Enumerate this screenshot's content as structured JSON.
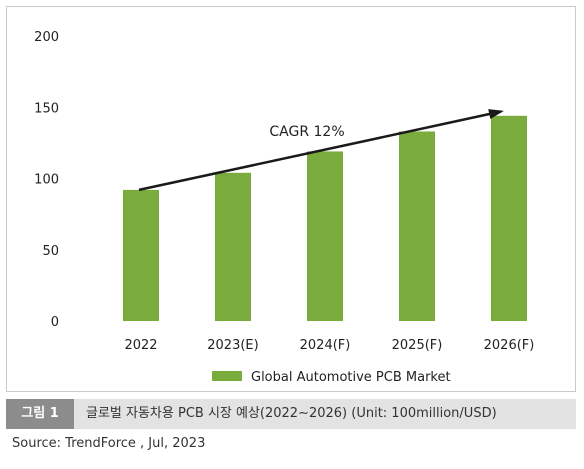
{
  "figure": {
    "tag": "그림 1",
    "caption": "글로벌 자동차용 PCB 시장 예상(2022∼2026) (Unit: 100million/USD)",
    "source": "Source: TrendForce , Jul, 2023"
  },
  "colors": {
    "bar": "#7aab3d",
    "arrow": "#1a1a1a",
    "axis_text": "#222222"
  },
  "chart_data": {
    "type": "bar",
    "categories": [
      "2022",
      "2023(E)",
      "2024(F)",
      "2025(F)",
      "2026(F)"
    ],
    "series": [
      {
        "name": "Global Automotive PCB Market",
        "values": [
          92,
          104,
          119,
          133,
          144
        ]
      }
    ],
    "ylim": [
      0,
      200
    ],
    "yticks": [
      0,
      50,
      100,
      150,
      200
    ],
    "grid": false,
    "legend_position": "bottom",
    "annotation": {
      "text": "CAGR 12%",
      "arrow_from": {
        "category": "2022",
        "value": 92
      },
      "arrow_to": {
        "category": "2026(F)",
        "value": 147
      }
    }
  }
}
